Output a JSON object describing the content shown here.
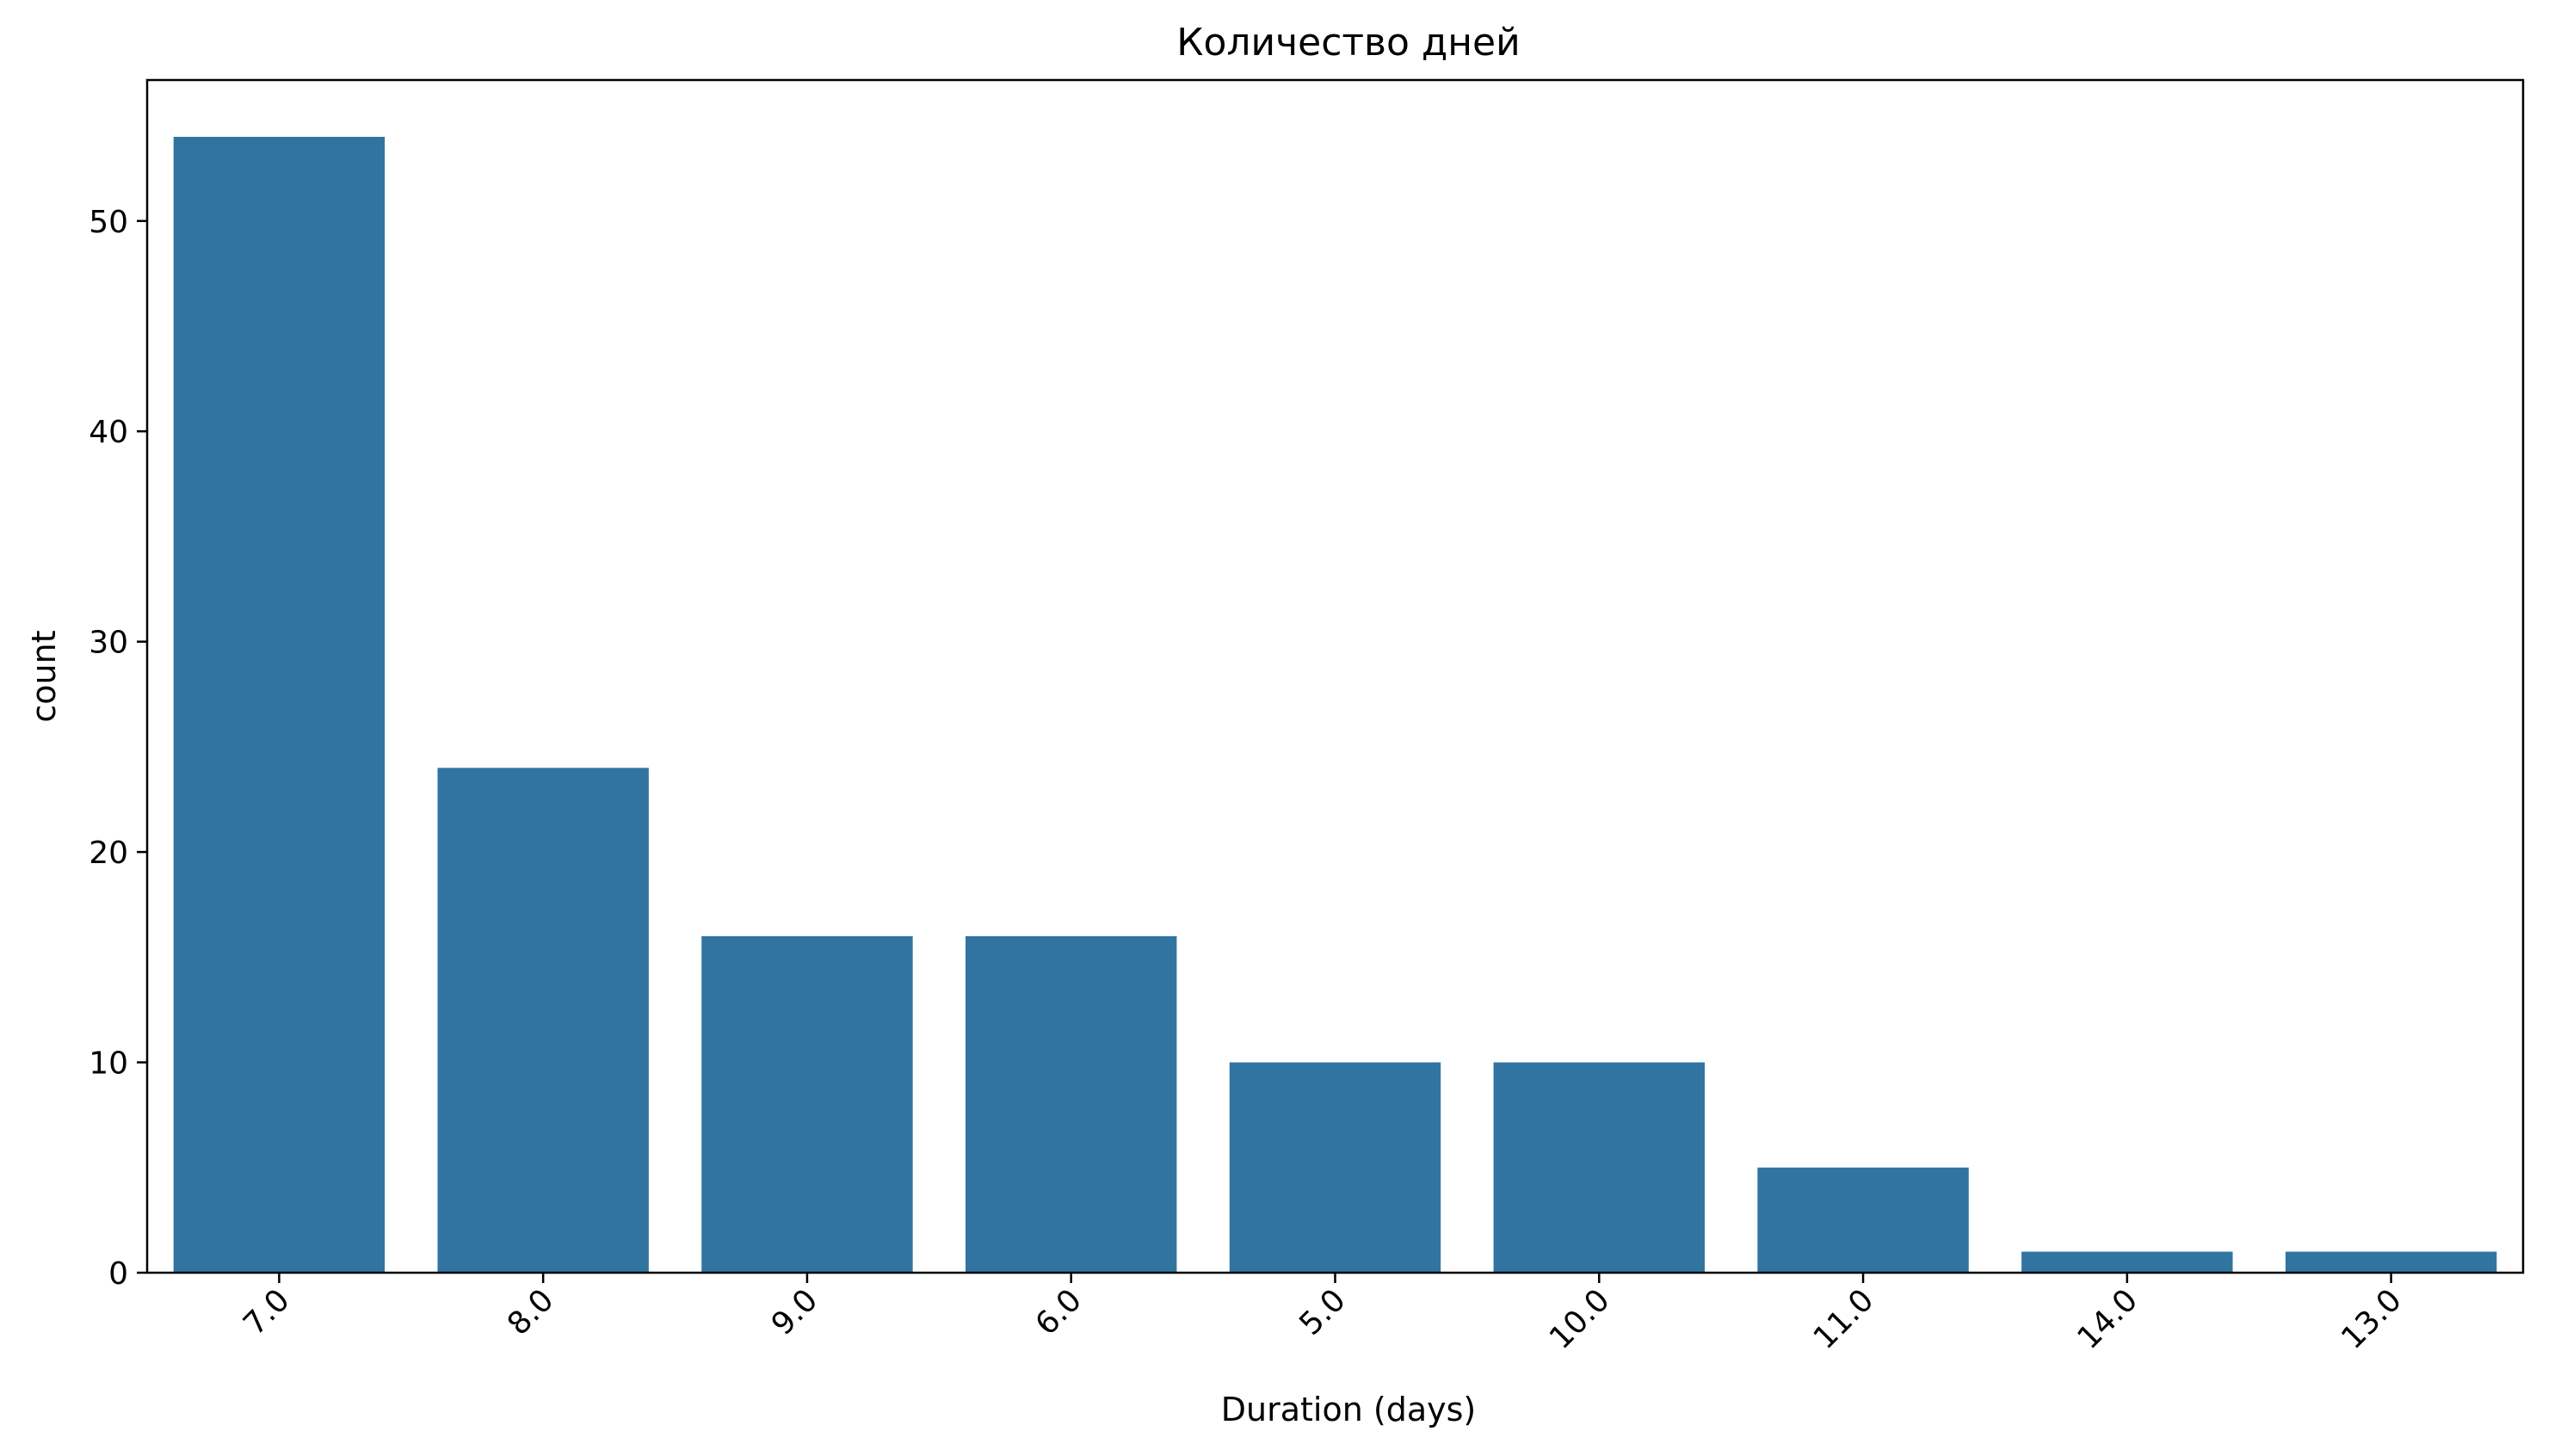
{
  "chart_data": {
    "type": "bar",
    "title": "Количество дней",
    "xlabel": "Duration (days)",
    "ylabel": "count",
    "categories": [
      "7.0",
      "8.0",
      "9.0",
      "6.0",
      "5.0",
      "10.0",
      "11.0",
      "14.0",
      "13.0"
    ],
    "values": [
      54,
      24,
      16,
      16,
      10,
      10,
      5,
      1,
      1
    ],
    "ylim": [
      0,
      56.7
    ],
    "yticks": [
      0,
      10,
      20,
      30,
      40,
      50
    ],
    "ytick_labels": [
      "0",
      "10",
      "20",
      "30",
      "40",
      "50"
    ],
    "grid": false,
    "bar_color": "#3274a1",
    "xtick_rotation": 45
  }
}
